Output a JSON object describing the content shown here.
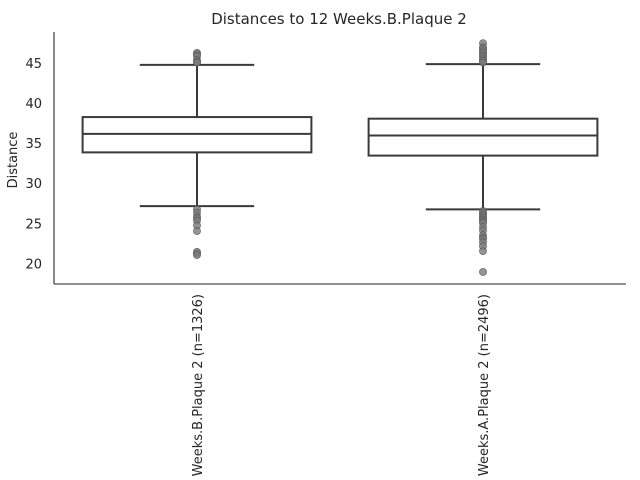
{
  "chart_data": {
    "type": "box",
    "title": "Distances to 12 Weeks.B.Plaque 2",
    "xlabel": "",
    "ylabel": "Distance",
    "ylim": [
      17.5,
      48.9
    ],
    "yticks": [
      20,
      25,
      30,
      35,
      40,
      45
    ],
    "grid": false,
    "categories": [
      "Weeks.B.Plaque 2 (n=1326)",
      "Weeks.A.Plaque 2 (n=2496)"
    ],
    "boxes": [
      {
        "category": "Weeks.B.Plaque 2 (n=1326)",
        "whisker_low": 27.2,
        "q1": 33.9,
        "median": 36.2,
        "q3": 38.3,
        "whisker_high": 44.8,
        "outliers": [
          46.3,
          46.1,
          45.9,
          45.4,
          45.2,
          45.1,
          26.8,
          26.4,
          25.9,
          25.7,
          25.4,
          24.8,
          24.1,
          21.5,
          21.3,
          21.1
        ]
      },
      {
        "category": "Weeks.A.Plaque 2 (n=2496)",
        "whisker_low": 26.8,
        "q1": 33.5,
        "median": 36.0,
        "q3": 38.1,
        "whisker_high": 44.9,
        "outliers": [
          47.5,
          47.0,
          46.8,
          46.5,
          46.3,
          46.0,
          45.8,
          45.5,
          45.3,
          45.1,
          26.6,
          26.3,
          26.1,
          25.9,
          25.7,
          25.5,
          25.3,
          25.1,
          24.6,
          24.2,
          23.6,
          23.3,
          23.1,
          22.7,
          22.2,
          21.6,
          19.0
        ]
      }
    ],
    "colors": {
      "box_edge": "#3a3a3a",
      "outlier": "#7a7a7a",
      "axis": "#262626"
    }
  }
}
